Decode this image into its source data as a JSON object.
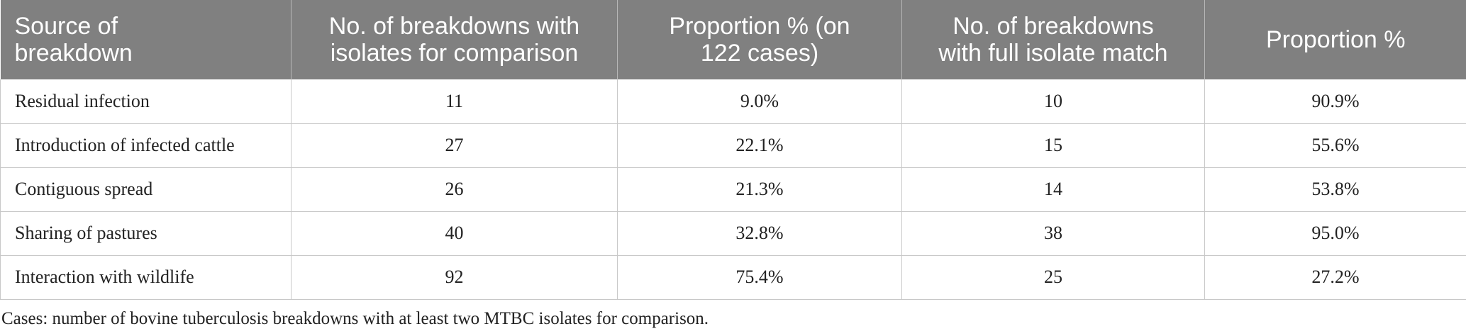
{
  "table": {
    "headers": [
      [
        "Source of",
        "breakdown"
      ],
      [
        "No. of breakdowns with",
        "isolates for comparison"
      ],
      [
        "Proportion % (on",
        "122 cases)"
      ],
      [
        "No. of breakdowns",
        "with full isolate match"
      ],
      [
        "Proportion %"
      ]
    ],
    "rows": [
      [
        "Residual infection",
        "11",
        "9.0%",
        "10",
        "90.9%"
      ],
      [
        "Introduction of infected cattle",
        "27",
        "22.1%",
        "15",
        "55.6%"
      ],
      [
        "Contiguous spread",
        "26",
        "21.3%",
        "14",
        "53.8%"
      ],
      [
        "Sharing of pastures",
        "40",
        "32.8%",
        "38",
        "95.0%"
      ],
      [
        "Interaction with wildlife",
        "92",
        "75.4%",
        "25",
        "27.2%"
      ]
    ]
  },
  "footnote": "Cases: number of bovine tuberculosis breakdowns with at least two MTBC isolates for comparison.",
  "colors": {
    "header_bg": "#808080",
    "header_text": "#ffffff",
    "grid": "#c8c8c8"
  }
}
